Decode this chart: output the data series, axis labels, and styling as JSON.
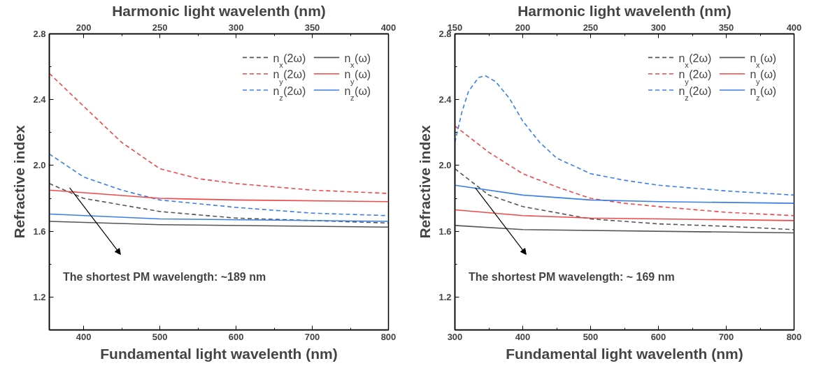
{
  "chart_data": [
    {
      "type": "line",
      "xlabel": "Fundamental light wavelenth (nm)",
      "ylabel": "Refractive index",
      "x2label": "Harmonic light wavelenth (nm)",
      "xlim": [
        355,
        800
      ],
      "xticks": [
        400,
        500,
        600,
        700,
        800
      ],
      "x2lim": [
        177.5,
        400
      ],
      "x2ticks": [
        200,
        250,
        300,
        350,
        400
      ],
      "ylim": [
        1.0,
        2.8
      ],
      "yticks": [
        1.2,
        1.6,
        {
          "value": 2.0,
          "label": "2.0"
        },
        2.4,
        2.8
      ],
      "grid": false,
      "legend": "top right",
      "series": [
        {
          "name": "n$_{x}$(2ω)",
          "color": "#555555",
          "line_style": "dashed",
          "x": [
            355,
            400,
            500,
            600,
            700,
            800
          ],
          "values": [
            1.89,
            1.8,
            1.72,
            1.68,
            1.665,
            1.65
          ]
        },
        {
          "name": "n$_{y}$(2ω)",
          "color": "#f04848",
          "line_style": "dashed",
          "x": [
            355,
            400,
            450,
            500,
            550,
            600,
            700,
            800
          ],
          "values": [
            2.56,
            2.36,
            2.14,
            1.98,
            1.92,
            1.89,
            1.85,
            1.83
          ]
        },
        {
          "name": "n$_{z}$(2ω)",
          "color": "#3a7fe6",
          "line_style": "dashed",
          "x": [
            355,
            400,
            450,
            500,
            600,
            700,
            800
          ],
          "values": [
            2.07,
            1.93,
            1.85,
            1.79,
            1.745,
            1.71,
            1.695
          ]
        },
        {
          "name": "n$_{x}$(ω)",
          "color": "#555555",
          "line_style": "solid",
          "x": [
            355,
            500,
            800
          ],
          "values": [
            1.66,
            1.64,
            1.625
          ]
        },
        {
          "name": "n$_{y}$(ω)",
          "color": "#f04848",
          "line_style": "solid",
          "x": [
            355,
            500,
            600,
            800
          ],
          "values": [
            1.85,
            1.8,
            1.79,
            1.78
          ]
        },
        {
          "name": "n$_{z}$(ω)",
          "color": "#3a7fe6",
          "line_style": "solid",
          "x": [
            355,
            500,
            800
          ],
          "values": [
            1.705,
            1.675,
            1.66
          ]
        }
      ],
      "annotations": [
        "The shortest PM wavelength: ~189 nm"
      ]
    },
    {
      "type": "line",
      "xlabel": "Fundamental light wavelenth (nm)",
      "ylabel": "Refractive index",
      "x2label": "Harmonic light wavelenth (nm)",
      "xlim": [
        300,
        800
      ],
      "xticks": [
        300,
        400,
        500,
        600,
        700,
        800
      ],
      "x2lim": [
        150,
        400
      ],
      "x2ticks": [
        150,
        200,
        250,
        300,
        350,
        400
      ],
      "ylim": [
        1.0,
        2.8
      ],
      "yticks": [
        1.2,
        1.6,
        {
          "value": 2.0,
          "label": "2.0"
        },
        2.4,
        2.8
      ],
      "grid": false,
      "legend": "top right",
      "series": [
        {
          "name": "n$_{x}$(2ω)",
          "color": "#555555",
          "line_style": "dashed",
          "x": [
            300,
            350,
            400,
            500,
            600,
            700,
            800
          ],
          "values": [
            1.98,
            1.82,
            1.75,
            1.675,
            1.645,
            1.63,
            1.61
          ]
        },
        {
          "name": "n$_{y}$(2ω)",
          "color": "#f04848",
          "line_style": "dashed",
          "x": [
            300,
            350,
            400,
            450,
            500,
            550,
            600,
            700,
            800
          ],
          "values": [
            2.24,
            2.08,
            1.95,
            1.87,
            1.8,
            1.77,
            1.75,
            1.715,
            1.695
          ]
        },
        {
          "name": "n$_{z}$(2ω)",
          "color": "#3a7fe6",
          "line_style": "dashed",
          "x": [
            300,
            310,
            320,
            335,
            345,
            360,
            380,
            400,
            425,
            450,
            500,
            550,
            600,
            700,
            800
          ],
          "values": [
            2.14,
            2.32,
            2.45,
            2.535,
            2.545,
            2.51,
            2.41,
            2.27,
            2.14,
            2.045,
            1.95,
            1.91,
            1.88,
            1.845,
            1.82
          ]
        },
        {
          "name": "n$_{x}$(ω)",
          "color": "#555555",
          "line_style": "solid",
          "x": [
            300,
            400,
            800
          ],
          "values": [
            1.635,
            1.61,
            1.59
          ]
        },
        {
          "name": "n$_{y}$(ω)",
          "color": "#f04848",
          "line_style": "solid",
          "x": [
            300,
            400,
            500,
            800
          ],
          "values": [
            1.73,
            1.695,
            1.68,
            1.665
          ]
        },
        {
          "name": "n$_{z}$(ω)",
          "color": "#3a7fe6",
          "line_style": "solid",
          "x": [
            300,
            400,
            500,
            600,
            800
          ],
          "values": [
            1.88,
            1.82,
            1.79,
            1.78,
            1.77
          ]
        }
      ],
      "annotations": [
        "The shortest PM wavelength: ~ 169 nm"
      ]
    }
  ]
}
